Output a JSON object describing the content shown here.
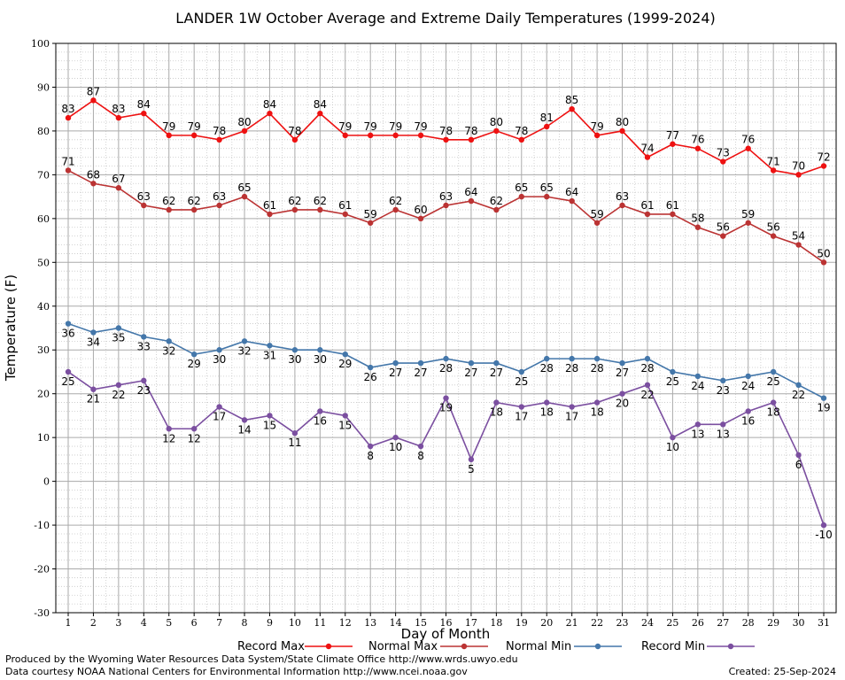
{
  "chart_data": {
    "type": "line",
    "title": "LANDER 1W October Average and Extreme Daily Temperatures (1999-2024)",
    "xlabel": "Day of Month",
    "ylabel": "Temperature (F)",
    "ylim": [
      -30,
      100
    ],
    "xlim": [
      1,
      31
    ],
    "x": [
      1,
      2,
      3,
      4,
      5,
      6,
      7,
      8,
      9,
      10,
      11,
      12,
      13,
      14,
      15,
      16,
      17,
      18,
      19,
      20,
      21,
      22,
      23,
      24,
      25,
      26,
      27,
      28,
      29,
      30,
      31
    ],
    "y_ticks": [
      -30,
      -20,
      -10,
      0,
      10,
      20,
      30,
      40,
      50,
      60,
      70,
      80,
      90,
      100
    ],
    "grid": true,
    "legend_position": "bottom",
    "series": [
      {
        "name": "Record Max",
        "color": "#ee1111",
        "label_position": "above",
        "values": [
          83,
          87,
          83,
          84,
          79,
          79,
          78,
          80,
          84,
          78,
          84,
          79,
          79,
          79,
          79,
          78,
          78,
          80,
          78,
          81,
          85,
          79,
          80,
          74,
          77,
          76,
          73,
          76,
          71,
          70,
          72
        ]
      },
      {
        "name": "Normal Max",
        "color": "#bb3333",
        "label_position": "above",
        "values": [
          71,
          68,
          67,
          63,
          62,
          62,
          63,
          65,
          61,
          62,
          62,
          61,
          59,
          62,
          60,
          63,
          64,
          62,
          65,
          65,
          64,
          59,
          63,
          61,
          61,
          58,
          56,
          59,
          56,
          54,
          50
        ]
      },
      {
        "name": "Normal Min",
        "color": "#4477aa",
        "label_position": "below",
        "values": [
          36,
          34,
          35,
          33,
          32,
          29,
          30,
          32,
          31,
          30,
          30,
          29,
          26,
          27,
          27,
          28,
          27,
          27,
          25,
          28,
          28,
          28,
          27,
          28,
          25,
          24,
          23,
          24,
          25,
          22,
          19
        ]
      },
      {
        "name": "Record Min",
        "color": "#7b4fa0",
        "label_position": "below",
        "values": [
          25,
          21,
          22,
          23,
          12,
          12,
          17,
          14,
          15,
          11,
          16,
          15,
          8,
          10,
          8,
          19,
          5,
          18,
          17,
          18,
          17,
          18,
          20,
          22,
          10,
          13,
          13,
          16,
          18,
          6,
          -10
        ]
      }
    ]
  },
  "footer": {
    "line1": "Produced by the Wyoming Water Resources Data System/State Climate Office http://www.wrds.uwyo.edu",
    "line2": "Data courtesy NOAA National Centers for Environmental Information http://www.ncei.noaa.gov",
    "created": "Created: 25-Sep-2024"
  }
}
